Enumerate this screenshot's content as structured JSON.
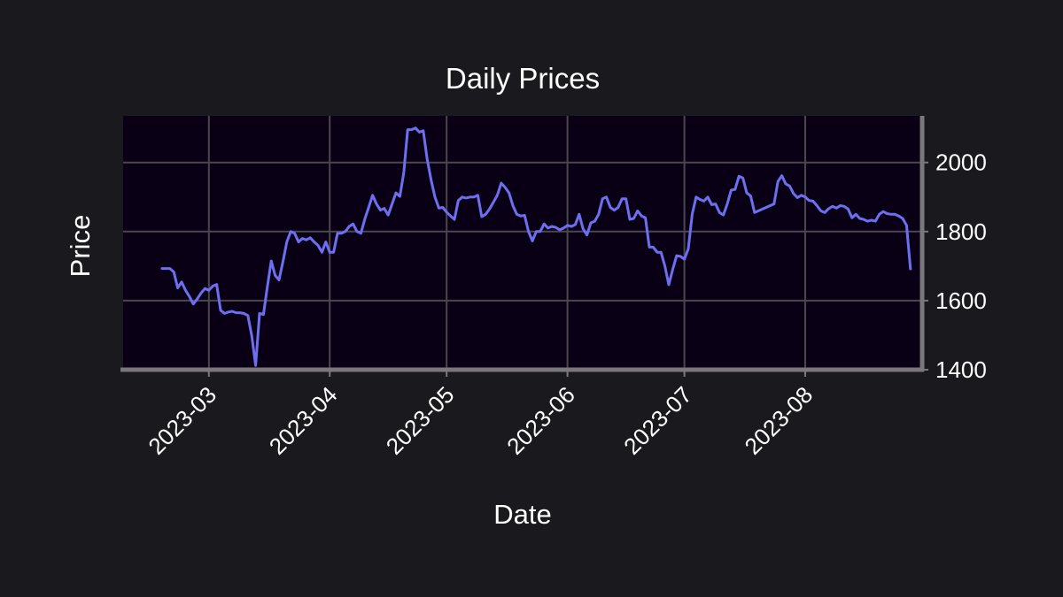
{
  "chart_data": {
    "type": "line",
    "title": "Daily Prices",
    "xlabel": "Date",
    "ylabel": "Price",
    "x_axis_type": "date",
    "x_tick_labels": [
      "2023-03",
      "2023-04",
      "2023-05",
      "2023-06",
      "2023-07",
      "2023-08"
    ],
    "x_tick_dates": [
      "2023-03-01",
      "2023-04-01",
      "2023-05-01",
      "2023-06-01",
      "2023-07-01",
      "2023-08-01"
    ],
    "y_ticks": [
      1400,
      1600,
      1800,
      2000
    ],
    "xlim": [
      "2023-02-07",
      "2023-08-31"
    ],
    "ylim": [
      1400,
      2135
    ],
    "y_axis_position": "right",
    "grid": true,
    "colors": {
      "figure_background": "#1a191e",
      "plot_background": "#0a0015",
      "grid": "#4a4750",
      "spine": "#7a787d",
      "line": "#6e6ff0",
      "text": "#ffffff"
    },
    "series": [
      {
        "values": [
          [
            "2023-02-17",
            1693
          ],
          [
            "2023-02-18",
            1693
          ],
          [
            "2023-02-19",
            1693
          ],
          [
            "2023-02-20",
            1683
          ],
          [
            "2023-02-21",
            1637
          ],
          [
            "2023-02-22",
            1654
          ],
          [
            "2023-02-23",
            1630
          ],
          [
            "2023-02-24",
            1612
          ],
          [
            "2023-02-25",
            1590
          ],
          [
            "2023-02-26",
            1605
          ],
          [
            "2023-02-27",
            1622
          ],
          [
            "2023-02-28",
            1635
          ],
          [
            "2023-03-01",
            1630
          ],
          [
            "2023-03-02",
            1642
          ],
          [
            "2023-03-03",
            1647
          ],
          [
            "2023-03-04",
            1572
          ],
          [
            "2023-03-05",
            1563
          ],
          [
            "2023-03-06",
            1567
          ],
          [
            "2023-03-07",
            1569
          ],
          [
            "2023-03-08",
            1565
          ],
          [
            "2023-03-09",
            1565
          ],
          [
            "2023-03-10",
            1563
          ],
          [
            "2023-03-11",
            1557
          ],
          [
            "2023-03-12",
            1498
          ],
          [
            "2023-03-13",
            1412
          ],
          [
            "2023-03-14",
            1563
          ],
          [
            "2023-03-15",
            1560
          ],
          [
            "2023-03-16",
            1640
          ],
          [
            "2023-03-17",
            1715
          ],
          [
            "2023-03-18",
            1673
          ],
          [
            "2023-03-19",
            1660
          ],
          [
            "2023-03-20",
            1713
          ],
          [
            "2023-03-21",
            1770
          ],
          [
            "2023-03-22",
            1800
          ],
          [
            "2023-03-23",
            1795
          ],
          [
            "2023-03-24",
            1770
          ],
          [
            "2023-03-25",
            1780
          ],
          [
            "2023-03-26",
            1776
          ],
          [
            "2023-03-27",
            1782
          ],
          [
            "2023-03-28",
            1770
          ],
          [
            "2023-03-29",
            1760
          ],
          [
            "2023-03-30",
            1740
          ],
          [
            "2023-03-31",
            1770
          ],
          [
            "2023-04-01",
            1740
          ],
          [
            "2023-04-02",
            1740
          ],
          [
            "2023-04-03",
            1795
          ],
          [
            "2023-04-04",
            1795
          ],
          [
            "2023-04-05",
            1800
          ],
          [
            "2023-04-06",
            1815
          ],
          [
            "2023-04-07",
            1822
          ],
          [
            "2023-04-08",
            1800
          ],
          [
            "2023-04-09",
            1795
          ],
          [
            "2023-04-10",
            1836
          ],
          [
            "2023-04-11",
            1870
          ],
          [
            "2023-04-12",
            1905
          ],
          [
            "2023-04-13",
            1880
          ],
          [
            "2023-04-14",
            1862
          ],
          [
            "2023-04-15",
            1867
          ],
          [
            "2023-04-16",
            1848
          ],
          [
            "2023-04-17",
            1880
          ],
          [
            "2023-04-18",
            1912
          ],
          [
            "2023-04-19",
            1902
          ],
          [
            "2023-04-20",
            1970
          ],
          [
            "2023-04-21",
            2095
          ],
          [
            "2023-04-22",
            2095
          ],
          [
            "2023-04-23",
            2100
          ],
          [
            "2023-04-24",
            2088
          ],
          [
            "2023-04-25",
            2092
          ],
          [
            "2023-04-26",
            2010
          ],
          [
            "2023-04-27",
            1950
          ],
          [
            "2023-04-28",
            1900
          ],
          [
            "2023-04-29",
            1868
          ],
          [
            "2023-04-30",
            1870
          ],
          [
            "2023-05-01",
            1856
          ],
          [
            "2023-05-02",
            1845
          ],
          [
            "2023-05-03",
            1835
          ],
          [
            "2023-05-04",
            1890
          ],
          [
            "2023-05-05",
            1900
          ],
          [
            "2023-05-06",
            1897
          ],
          [
            "2023-05-07",
            1900
          ],
          [
            "2023-05-08",
            1900
          ],
          [
            "2023-05-09",
            1905
          ],
          [
            "2023-05-10",
            1843
          ],
          [
            "2023-05-11",
            1850
          ],
          [
            "2023-05-12",
            1865
          ],
          [
            "2023-05-13",
            1885
          ],
          [
            "2023-05-14",
            1905
          ],
          [
            "2023-05-15",
            1940
          ],
          [
            "2023-05-16",
            1928
          ],
          [
            "2023-05-17",
            1912
          ],
          [
            "2023-05-18",
            1875
          ],
          [
            "2023-05-19",
            1850
          ],
          [
            "2023-05-20",
            1845
          ],
          [
            "2023-05-21",
            1847
          ],
          [
            "2023-05-22",
            1800
          ],
          [
            "2023-05-23",
            1773
          ],
          [
            "2023-05-24",
            1800
          ],
          [
            "2023-05-25",
            1800
          ],
          [
            "2023-05-26",
            1822
          ],
          [
            "2023-05-27",
            1810
          ],
          [
            "2023-05-28",
            1815
          ],
          [
            "2023-05-29",
            1812
          ],
          [
            "2023-05-30",
            1805
          ],
          [
            "2023-05-31",
            1810
          ],
          [
            "2023-06-01",
            1818
          ],
          [
            "2023-06-02",
            1815
          ],
          [
            "2023-06-03",
            1820
          ],
          [
            "2023-06-04",
            1850
          ],
          [
            "2023-06-05",
            1808
          ],
          [
            "2023-06-06",
            1790
          ],
          [
            "2023-06-07",
            1825
          ],
          [
            "2023-06-08",
            1830
          ],
          [
            "2023-06-09",
            1850
          ],
          [
            "2023-06-10",
            1895
          ],
          [
            "2023-06-11",
            1900
          ],
          [
            "2023-06-12",
            1870
          ],
          [
            "2023-06-13",
            1862
          ],
          [
            "2023-06-14",
            1870
          ],
          [
            "2023-06-15",
            1895
          ],
          [
            "2023-06-16",
            1895
          ],
          [
            "2023-06-17",
            1835
          ],
          [
            "2023-06-18",
            1838
          ],
          [
            "2023-06-19",
            1860
          ],
          [
            "2023-06-20",
            1845
          ],
          [
            "2023-06-21",
            1840
          ],
          [
            "2023-06-22",
            1755
          ],
          [
            "2023-06-23",
            1755
          ],
          [
            "2023-06-24",
            1740
          ],
          [
            "2023-06-25",
            1740
          ],
          [
            "2023-06-26",
            1700
          ],
          [
            "2023-06-27",
            1646
          ],
          [
            "2023-06-28",
            1690
          ],
          [
            "2023-06-29",
            1730
          ],
          [
            "2023-06-30",
            1728
          ],
          [
            "2023-07-01",
            1720
          ],
          [
            "2023-07-02",
            1750
          ],
          [
            "2023-07-03",
            1850
          ],
          [
            "2023-07-04",
            1900
          ],
          [
            "2023-07-05",
            1893
          ],
          [
            "2023-07-06",
            1888
          ],
          [
            "2023-07-07",
            1900
          ],
          [
            "2023-07-08",
            1878
          ],
          [
            "2023-07-09",
            1880
          ],
          [
            "2023-07-10",
            1855
          ],
          [
            "2023-07-11",
            1848
          ],
          [
            "2023-07-12",
            1880
          ],
          [
            "2023-07-13",
            1920
          ],
          [
            "2023-07-14",
            1922
          ],
          [
            "2023-07-15",
            1960
          ],
          [
            "2023-07-16",
            1955
          ],
          [
            "2023-07-17",
            1912
          ],
          [
            "2023-07-18",
            1903
          ],
          [
            "2023-07-19",
            1855
          ],
          [
            "2023-07-20",
            1860
          ],
          [
            "2023-07-21",
            1865
          ],
          [
            "2023-07-22",
            1870
          ],
          [
            "2023-07-23",
            1875
          ],
          [
            "2023-07-24",
            1880
          ],
          [
            "2023-07-25",
            1945
          ],
          [
            "2023-07-26",
            1962
          ],
          [
            "2023-07-27",
            1938
          ],
          [
            "2023-07-28",
            1932
          ],
          [
            "2023-07-29",
            1910
          ],
          [
            "2023-07-30",
            1898
          ],
          [
            "2023-07-31",
            1905
          ],
          [
            "2023-08-01",
            1900
          ],
          [
            "2023-08-02",
            1890
          ],
          [
            "2023-08-03",
            1888
          ],
          [
            "2023-08-04",
            1875
          ],
          [
            "2023-08-05",
            1860
          ],
          [
            "2023-08-06",
            1855
          ],
          [
            "2023-08-07",
            1866
          ],
          [
            "2023-08-08",
            1873
          ],
          [
            "2023-08-09",
            1868
          ],
          [
            "2023-08-10",
            1875
          ],
          [
            "2023-08-11",
            1873
          ],
          [
            "2023-08-12",
            1865
          ],
          [
            "2023-08-13",
            1840
          ],
          [
            "2023-08-14",
            1850
          ],
          [
            "2023-08-15",
            1838
          ],
          [
            "2023-08-16",
            1835
          ],
          [
            "2023-08-17",
            1830
          ],
          [
            "2023-08-18",
            1833
          ],
          [
            "2023-08-19",
            1830
          ],
          [
            "2023-08-20",
            1850
          ],
          [
            "2023-08-21",
            1858
          ],
          [
            "2023-08-22",
            1852
          ],
          [
            "2023-08-23",
            1850
          ],
          [
            "2023-08-24",
            1850
          ],
          [
            "2023-08-25",
            1845
          ],
          [
            "2023-08-26",
            1838
          ],
          [
            "2023-08-27",
            1818
          ],
          [
            "2023-08-28",
            1692
          ]
        ]
      }
    ]
  }
}
